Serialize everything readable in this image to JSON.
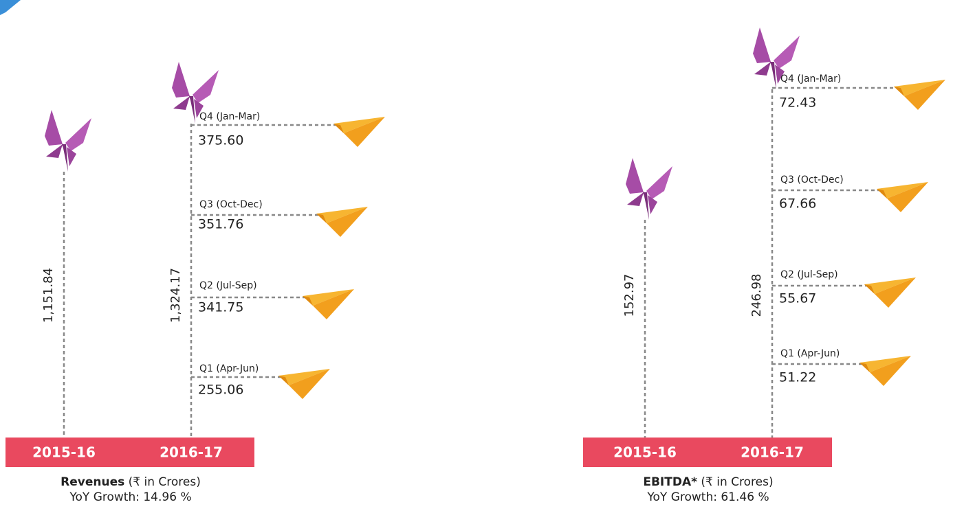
{
  "panels": [
    {
      "title": "Revenues",
      "unit": "(₹ in Crores)",
      "growth": "YoY Growth: 14.96 %",
      "years": [
        "2015-16",
        "2016-17"
      ],
      "totals": [
        "1,151.84",
        "1,324.17"
      ],
      "quarters": [
        {
          "label": "Q4 (Jan-Mar)",
          "value": "375.60"
        },
        {
          "label": "Q3 (Oct-Dec)",
          "value": "351.76"
        },
        {
          "label": "Q2 (Jul-Sep)",
          "value": "341.75"
        },
        {
          "label": "Q1 (Apr-Jun)",
          "value": "255.06"
        }
      ]
    },
    {
      "title": "EBITDA*",
      "unit": "(₹ in Crores)",
      "growth": "YoY Growth: 61.46 %",
      "years": [
        "2015-16",
        "2016-17"
      ],
      "totals": [
        "152.97",
        "246.98"
      ],
      "quarters": [
        {
          "label": "Q4 (Jan-Mar)",
          "value": "72.43"
        },
        {
          "label": "Q3 (Oct-Dec)",
          "value": "67.66"
        },
        {
          "label": "Q2 (Jul-Sep)",
          "value": "55.67"
        },
        {
          "label": "Q1 (Apr-Jun)",
          "value": "51.22"
        }
      ]
    }
  ]
}
